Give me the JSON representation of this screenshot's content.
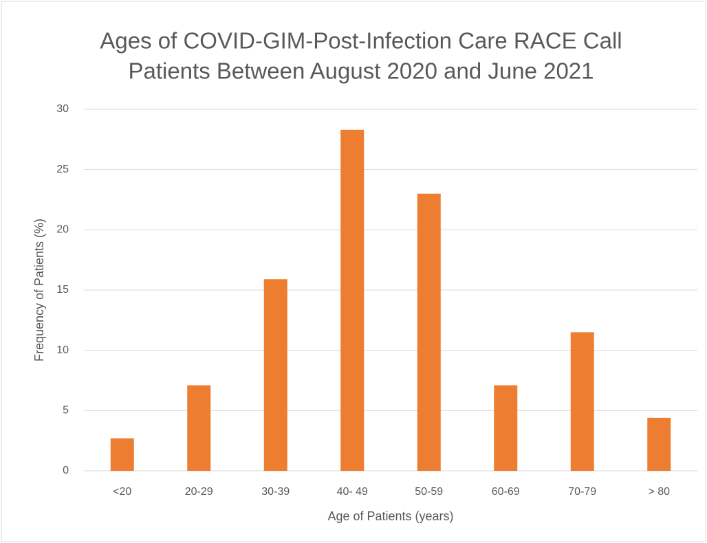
{
  "chart_data": {
    "type": "bar",
    "title": [
      "Ages of COVID-GIM-Post-Infection Care RACE Call",
      "Patients Between August 2020 and June 2021"
    ],
    "x_label": "Age  of Patients (years)",
    "y_label": "Frequency of Patients (%)",
    "categories": [
      "<20",
      "20-29",
      "30-39",
      "40- 49",
      "50-59",
      "60-69",
      "70-79",
      "> 80"
    ],
    "values": [
      2.7,
      7.1,
      15.9,
      28.3,
      23.0,
      7.1,
      11.5,
      4.4
    ],
    "color": "#ed7d31",
    "ylim": [
      0,
      30
    ],
    "yticks": [
      0,
      5,
      10,
      15,
      20,
      25,
      30
    ],
    "grid": true
  }
}
